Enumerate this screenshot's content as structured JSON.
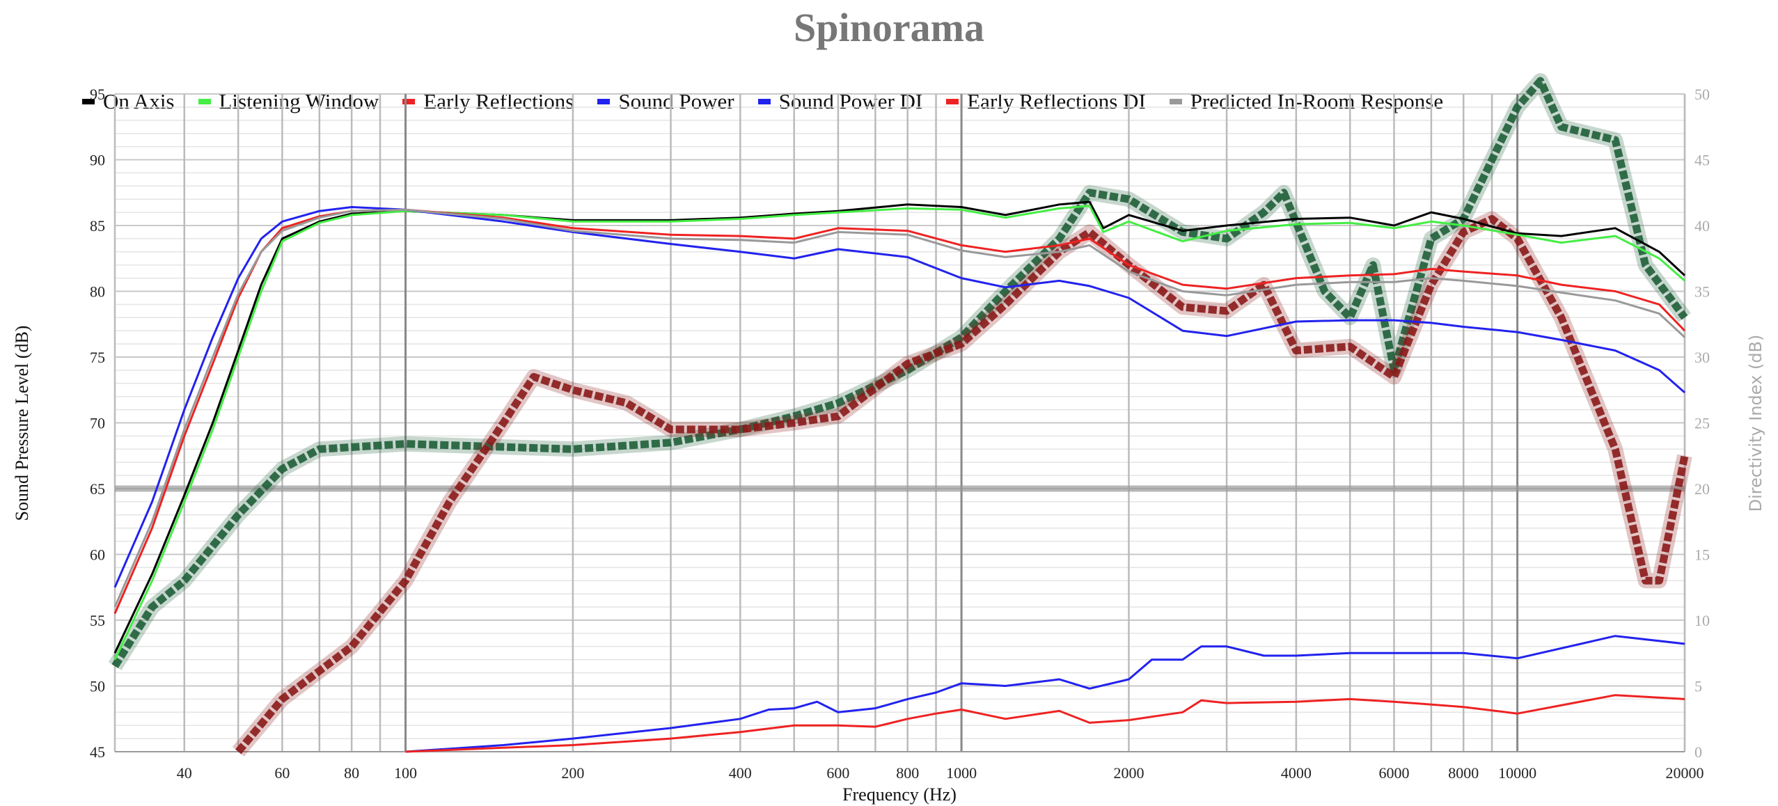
{
  "chart_data": {
    "type": "line",
    "title": "Spinorama",
    "xlabel": "Frequency (Hz)",
    "ylabel": "Sound Pressure Level (dB)",
    "y2label": "Directivity Index (dB)",
    "xscale": "log",
    "xlim": [
      30,
      20000
    ],
    "ylim": [
      45,
      95
    ],
    "y2lim": [
      0,
      50
    ],
    "x_ticks": [
      40,
      60,
      80,
      100,
      200,
      400,
      600,
      800,
      1000,
      2000,
      4000,
      6000,
      8000,
      10000,
      20000
    ],
    "y_ticks": [
      45,
      50,
      55,
      60,
      65,
      70,
      75,
      80,
      85,
      90,
      95
    ],
    "y2_ticks": [
      0,
      5,
      10,
      15,
      20,
      25,
      30,
      35,
      40,
      45,
      50
    ],
    "grid": true,
    "legend_position": "top",
    "reference_line": {
      "y": 65,
      "color": "#999999"
    },
    "series": [
      {
        "name": "On Axis",
        "color": "#000000",
        "axis": "left",
        "x": [
          30,
          35,
          40,
          45,
          50,
          55,
          60,
          70,
          80,
          100,
          150,
          200,
          300,
          400,
          500,
          600,
          800,
          1000,
          1200,
          1500,
          1700,
          1800,
          2000,
          2500,
          3000,
          4000,
          5000,
          6000,
          7000,
          8000,
          10000,
          12000,
          15000,
          18000,
          20000
        ],
        "y": [
          52.5,
          58.5,
          64.5,
          70,
          75.5,
          80.5,
          84,
          85.3,
          85.9,
          86.1,
          85.8,
          85.4,
          85.4,
          85.6,
          85.9,
          86.1,
          86.6,
          86.4,
          85.8,
          86.6,
          86.8,
          84.8,
          85.8,
          84.6,
          85.0,
          85.5,
          85.6,
          85.0,
          86.0,
          85.5,
          84.4,
          84.2,
          84.8,
          83.0,
          81.2
        ]
      },
      {
        "name": "Listening Window",
        "color": "#44ee44",
        "axis": "left",
        "x": [
          30,
          35,
          40,
          45,
          50,
          55,
          60,
          70,
          80,
          100,
          150,
          200,
          300,
          400,
          500,
          600,
          800,
          1000,
          1200,
          1500,
          1700,
          1800,
          2000,
          2500,
          3000,
          4000,
          5000,
          6000,
          7000,
          8000,
          10000,
          12000,
          15000,
          18000,
          20000
        ],
        "y": [
          52,
          58,
          64,
          69.5,
          75,
          80,
          83.8,
          85.2,
          85.8,
          86.1,
          85.8,
          85.3,
          85.3,
          85.5,
          85.8,
          86.0,
          86.3,
          86.2,
          85.6,
          86.3,
          86.5,
          84.5,
          85.3,
          83.8,
          84.6,
          85.1,
          85.2,
          84.8,
          85.3,
          85.0,
          84.3,
          83.7,
          84.2,
          82.5,
          80.8
        ]
      },
      {
        "name": "Early Reflections",
        "color": "#ee2222",
        "axis": "left",
        "x": [
          30,
          35,
          40,
          45,
          50,
          55,
          60,
          70,
          80,
          100,
          150,
          200,
          300,
          400,
          500,
          600,
          800,
          1000,
          1200,
          1500,
          1700,
          2000,
          2500,
          3000,
          4000,
          5000,
          6000,
          7000,
          8000,
          10000,
          12000,
          15000,
          18000,
          20000
        ],
        "y": [
          55.5,
          62,
          69,
          74.5,
          79.5,
          83,
          84.8,
          85.7,
          86.1,
          86.2,
          85.6,
          84.8,
          84.3,
          84.2,
          84.0,
          84.8,
          84.6,
          83.5,
          83.0,
          83.5,
          84.0,
          82.0,
          80.5,
          80.2,
          81.0,
          81.2,
          81.3,
          81.7,
          81.5,
          81.2,
          80.5,
          80.0,
          79.0,
          77.0
        ]
      },
      {
        "name": "Sound Power",
        "color": "#2222ee",
        "axis": "left",
        "x": [
          30,
          35,
          40,
          45,
          50,
          55,
          60,
          70,
          80,
          100,
          150,
          200,
          300,
          400,
          500,
          600,
          800,
          1000,
          1200,
          1500,
          1700,
          2000,
          2500,
          3000,
          4000,
          5000,
          6000,
          7000,
          8000,
          10000,
          12000,
          15000,
          18000,
          20000
        ],
        "y": [
          57.5,
          64,
          71,
          76.5,
          81,
          84,
          85.3,
          86.1,
          86.4,
          86.2,
          85.3,
          84.5,
          83.6,
          83.0,
          82.5,
          83.2,
          82.6,
          81.0,
          80.3,
          80.8,
          80.4,
          79.5,
          77.0,
          76.6,
          77.7,
          77.8,
          77.8,
          77.6,
          77.3,
          76.9,
          76.3,
          75.5,
          74.0,
          72.3
        ]
      },
      {
        "name": "Sound Power DI",
        "color": "#2222ee",
        "axis": "right",
        "x": [
          100,
          150,
          200,
          300,
          400,
          450,
          500,
          550,
          600,
          700,
          800,
          900,
          1000,
          1200,
          1500,
          1700,
          2000,
          2200,
          2500,
          2700,
          3000,
          3500,
          4000,
          5000,
          6000,
          8000,
          10000,
          15000,
          20000
        ],
        "y": [
          0,
          0.5,
          1,
          1.8,
          2.5,
          3.2,
          3.3,
          3.8,
          3,
          3.3,
          4,
          4.5,
          5.2,
          5,
          5.5,
          4.8,
          5.5,
          7,
          7,
          8,
          8,
          7.3,
          7.3,
          7.5,
          7.5,
          7.5,
          7.1,
          8.8,
          8.2
        ]
      },
      {
        "name": "Early Reflections DI",
        "color": "#ee2222",
        "axis": "right",
        "x": [
          100,
          150,
          200,
          300,
          400,
          500,
          600,
          700,
          800,
          900,
          1000,
          1200,
          1500,
          1700,
          2000,
          2500,
          2700,
          3000,
          4000,
          5000,
          6000,
          8000,
          10000,
          15000,
          20000
        ],
        "y": [
          0,
          0.3,
          0.5,
          1,
          1.5,
          2,
          2,
          1.9,
          2.5,
          2.9,
          3.2,
          2.5,
          3.1,
          2.2,
          2.4,
          3,
          3.9,
          3.7,
          3.8,
          4,
          3.8,
          3.4,
          2.9,
          4.3,
          4
        ]
      },
      {
        "name": "Predicted In-Room Response",
        "color": "#999999",
        "axis": "left",
        "x": [
          30,
          35,
          40,
          45,
          50,
          55,
          60,
          70,
          80,
          100,
          150,
          200,
          300,
          400,
          500,
          600,
          800,
          1000,
          1200,
          1500,
          1700,
          2000,
          2500,
          3000,
          4000,
          5000,
          6000,
          7000,
          8000,
          10000,
          12000,
          15000,
          18000,
          20000
        ],
        "y": [
          56,
          62.5,
          69.5,
          75,
          79.8,
          83,
          84.6,
          85.6,
          86.1,
          86.2,
          85.5,
          84.6,
          84.0,
          83.9,
          83.7,
          84.5,
          84.3,
          83.1,
          82.6,
          83.0,
          83.5,
          81.5,
          80.0,
          79.7,
          80.5,
          80.7,
          80.7,
          81.0,
          80.8,
          80.4,
          79.9,
          79.3,
          78.3,
          76.5
        ]
      }
    ],
    "extra_traces": [
      {
        "color": "#1f5f3a",
        "axis": "left",
        "x": [
          30,
          35,
          40,
          50,
          60,
          70,
          100,
          200,
          300,
          400,
          500,
          600,
          800,
          1000,
          1200,
          1500,
          1700,
          2000,
          2500,
          3000,
          3500,
          3800,
          4500,
          5000,
          5500,
          6000,
          7000,
          8000,
          10000,
          11000,
          12000,
          15000,
          17000,
          20000
        ],
        "y": [
          51.5,
          56,
          58,
          63,
          66.5,
          68,
          68.4,
          68,
          68.5,
          69.5,
          70.5,
          71.5,
          74,
          76.5,
          80,
          84,
          87.5,
          87,
          84.5,
          84,
          86,
          87.5,
          80,
          78,
          82,
          74,
          84,
          85.5,
          94,
          96,
          92.5,
          91.5,
          82,
          78
        ]
      },
      {
        "color": "#8b1a1a",
        "axis": "left",
        "x": [
          50,
          60,
          80,
          100,
          120,
          150,
          170,
          200,
          250,
          300,
          400,
          500,
          600,
          800,
          1000,
          1200,
          1500,
          1700,
          2000,
          2500,
          3000,
          3500,
          4000,
          5000,
          6000,
          7000,
          8000,
          9000,
          10000,
          12000,
          15000,
          17000,
          18000,
          20000
        ],
        "y": [
          45,
          49,
          53,
          58,
          64,
          70,
          73.5,
          72.5,
          71.5,
          69.5,
          69.5,
          70,
          70.5,
          74.5,
          76,
          79,
          83,
          84.5,
          82,
          78.8,
          78.5,
          80.5,
          75.5,
          75.8,
          73.5,
          80.5,
          84.5,
          85.5,
          84,
          78,
          68,
          58,
          58,
          67.5
        ]
      }
    ]
  }
}
